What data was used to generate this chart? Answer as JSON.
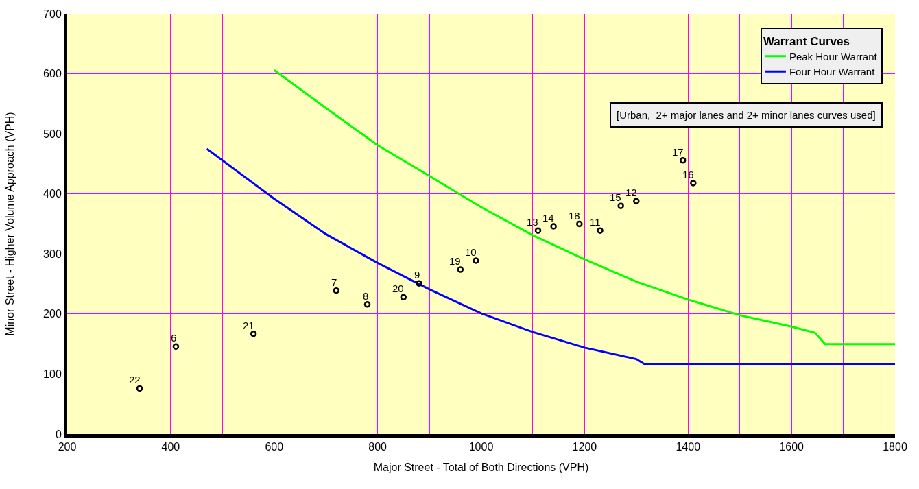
{
  "chart_data": {
    "type": "scatter",
    "xlabel": "Major Street - Total of Both Directions (VPH)",
    "ylabel": "Minor Street - Higher Volume Approach (VPH)",
    "legend_title": "Warrant Curves",
    "annotations": [
      "[Urban,  2+ major lanes and 2+ minor lanes curves used]",
      {
        "text": "22",
        "x": 340,
        "y": 76
      },
      {
        "text": "6",
        "x": 410,
        "y": 146
      },
      {
        "text": "21",
        "x": 560,
        "y": 167
      },
      {
        "text": "7",
        "x": 720,
        "y": 239
      },
      {
        "text": "8",
        "x": 780,
        "y": 216
      },
      {
        "text": "20",
        "x": 850,
        "y": 228
      },
      {
        "text": "9",
        "x": 880,
        "y": 251
      },
      {
        "text": "19",
        "x": 960,
        "y": 274
      },
      {
        "text": "10",
        "x": 990,
        "y": 289
      },
      {
        "text": "13",
        "x": 1110,
        "y": 339
      },
      {
        "text": "14",
        "x": 1140,
        "y": 346
      },
      {
        "text": "18",
        "x": 1190,
        "y": 350
      },
      {
        "text": "11",
        "x": 1230,
        "y": 339
      },
      {
        "text": "15",
        "x": 1270,
        "y": 380
      },
      {
        "text": "12",
        "x": 1300,
        "y": 388
      },
      {
        "text": "17",
        "x": 1390,
        "y": 456
      },
      {
        "text": "16",
        "x": 1410,
        "y": 418
      }
    ],
    "legend": "top right",
    "grid": true,
    "xlim": [
      200,
      1800
    ],
    "xticks": [
      200,
      {
        "value": 300,
        "label": null
      },
      400,
      {
        "value": 500,
        "label": null
      },
      600,
      {
        "value": 700,
        "label": null
      },
      800,
      {
        "value": 900,
        "label": null
      },
      1000,
      {
        "value": 1100,
        "label": null
      },
      1200,
      {
        "value": 1300,
        "label": null
      },
      1400,
      {
        "value": 1500,
        "label": null
      },
      1600,
      {
        "value": 1700,
        "label": null
      },
      1800
    ],
    "ylim": [
      0,
      700
    ],
    "yticks": [
      0,
      100,
      200,
      300,
      400,
      500,
      600,
      700
    ],
    "series": [
      {
        "name": "Peak Hour Warrant",
        "type": "line",
        "color": "#00ff00",
        "marker": "none",
        "line_style": "solid",
        "x": [
          600,
          700,
          800,
          900,
          1000,
          1100,
          1200,
          1300,
          1400,
          1500,
          1600,
          1645,
          1665,
          1800
        ],
        "values": [
          606,
          543,
          481,
          430,
          378,
          331,
          291,
          254,
          224,
          198,
          179,
          169,
          150,
          150
        ]
      },
      {
        "name": "Four Hour Warrant",
        "type": "line",
        "color": "#0000ff",
        "marker": "none",
        "line_style": "solid",
        "x": [
          470,
          600,
          700,
          800,
          900,
          1000,
          1100,
          1200,
          1300,
          1315,
          1800
        ],
        "values": [
          475,
          392,
          333,
          285,
          241,
          201,
          170,
          144,
          125,
          117,
          117
        ]
      },
      {
        "color": "#000000",
        "marker": "circle",
        "x": [
          340,
          410,
          560,
          720,
          780,
          850,
          880,
          960,
          990,
          1110,
          1140,
          1190,
          1230,
          1270,
          1300,
          1390,
          1410
        ],
        "values": [
          76,
          146,
          167,
          239,
          216,
          228,
          251,
          274,
          289,
          339,
          346,
          350,
          339,
          380,
          388,
          456,
          418
        ]
      }
    ]
  }
}
